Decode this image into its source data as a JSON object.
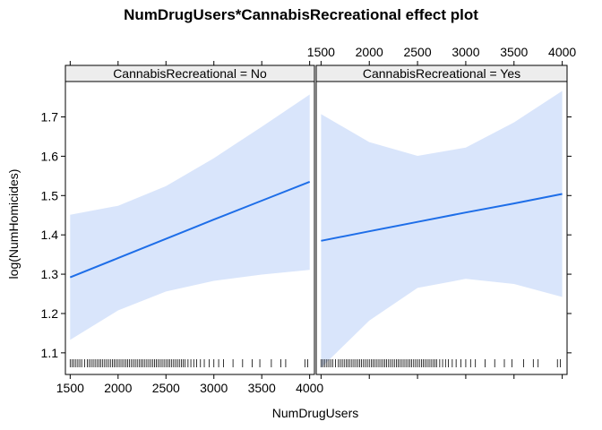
{
  "chart_data": {
    "type": "line",
    "title": "NumDrugUsers*CannabisRecreational effect plot",
    "xlabel": "NumDrugUsers",
    "ylabel": "log(NumHomicides)",
    "xlim": [
      1450,
      4050
    ],
    "ylim": [
      1.045,
      1.79
    ],
    "xticks": [
      1500,
      2000,
      2500,
      3000,
      3500,
      4000
    ],
    "xtick_labels": [
      "1500",
      "2000",
      "2500",
      "3000",
      "3500",
      "4000"
    ],
    "yticks": [
      1.1,
      1.2,
      1.3,
      1.4,
      1.5,
      1.6,
      1.7
    ],
    "ytick_labels": [
      "1.1",
      "1.2",
      "1.3",
      "1.4",
      "1.5",
      "1.6",
      "1.7"
    ],
    "colors": {
      "line": "#1e6ee8",
      "band": "#d9e5fb",
      "strip": "#ededed",
      "frame": "#000000"
    },
    "panels": [
      {
        "strip": "CannabisRecreational = No",
        "x": [
          1500,
          2000,
          2500,
          3000,
          3500,
          4000
        ],
        "fit": [
          1.292,
          1.341,
          1.39,
          1.439,
          1.487,
          1.535
        ],
        "lower": [
          1.133,
          1.208,
          1.256,
          1.283,
          1.299,
          1.311
        ],
        "upper": [
          1.451,
          1.474,
          1.524,
          1.595,
          1.675,
          1.757
        ]
      },
      {
        "strip": "CannabisRecreational = Yes",
        "x": [
          1500,
          2000,
          2500,
          3000,
          3500,
          4000
        ],
        "fit": [
          1.385,
          1.409,
          1.433,
          1.457,
          1.48,
          1.504
        ],
        "lower": [
          1.062,
          1.182,
          1.265,
          1.288,
          1.275,
          1.242
        ],
        "upper": [
          1.707,
          1.636,
          1.601,
          1.622,
          1.686,
          1.766
        ]
      }
    ],
    "rug": [
      1500,
      1520,
      1540,
      1560,
      1580,
      1600,
      1620,
      1650,
      1680,
      1700,
      1720,
      1740,
      1760,
      1780,
      1800,
      1820,
      1840,
      1860,
      1880,
      1900,
      1920,
      1940,
      1960,
      1980,
      2000,
      2020,
      2040,
      2060,
      2080,
      2100,
      2120,
      2140,
      2160,
      2180,
      2200,
      2220,
      2240,
      2260,
      2280,
      2300,
      2320,
      2340,
      2360,
      2380,
      2400,
      2420,
      2440,
      2460,
      2480,
      2500,
      2520,
      2540,
      2560,
      2580,
      2600,
      2620,
      2640,
      2660,
      2680,
      2700,
      2730,
      2760,
      2790,
      2820,
      2860,
      2900,
      2950,
      3000,
      3050,
      3100,
      3200,
      3300,
      3400,
      3480,
      3600,
      3700,
      3750,
      3950,
      3980
    ]
  }
}
